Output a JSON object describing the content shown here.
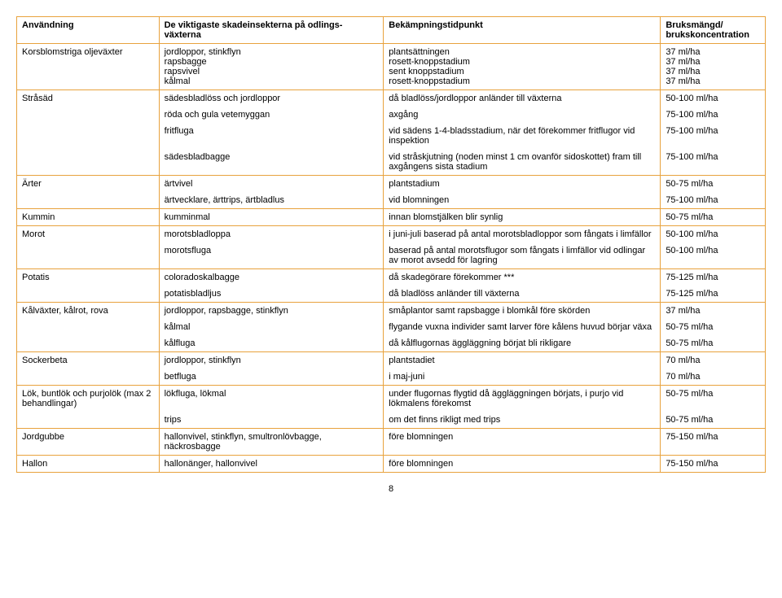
{
  "headers": {
    "c1": "Användning",
    "c2": "De viktigaste skadeinsekterna på odlings-växterna",
    "c3": "Bekämpningstidpunkt",
    "c4": "Bruksmängd/ brukskoncentration"
  },
  "rows": [
    {
      "c1": "Korsblomstriga oljeväxter",
      "c2": "jordloppor, stinkflyn\nrapsbagge\nrapsvivel\nkålmal",
      "c3": "plantsättningen\nrosett-knoppstadium\nsent knoppstadium\nrosett-knoppstadium",
      "c4": "37 ml/ha\n37 ml/ha\n37 ml/ha\n37 ml/ha",
      "cls": ""
    },
    {
      "c1": "Stråsäd",
      "c2": "sädesbladlöss och jordloppor",
      "c3": "då bladlöss/jordloppor anländer till växterna",
      "c4": "50-100 ml/ha",
      "cls": "no-bottom"
    },
    {
      "c1": "",
      "c2": "röda och gula vetemyggan",
      "c3": "axgång",
      "c4": "75-100 ml/ha",
      "cls": "no-top no-bottom"
    },
    {
      "c1": "",
      "c2": "fritfluga",
      "c3": "vid sädens 1-4-bladsstadium, när det förekommer fritflugor vid inspektion",
      "c4": "75-100 ml/ha",
      "cls": "no-top no-bottom"
    },
    {
      "c1": "",
      "c2": "sädesbladbagge",
      "c3": "vid stråskjutning (noden minst 1 cm ovanför sidoskottet) fram till axgångens sista stadium",
      "c4": "75-100 ml/ha",
      "cls": "no-top"
    },
    {
      "c1": "Ärter",
      "c2": "ärtvivel",
      "c3": "plantstadium",
      "c4": "50-75 ml/ha",
      "cls": "no-bottom"
    },
    {
      "c1": "",
      "c2": "ärtvecklare, ärttrips, ärtbladlus",
      "c3": "vid blomningen",
      "c4": "75-100 ml/ha",
      "cls": "no-top"
    },
    {
      "c1": "Kummin",
      "c2": "kumminmal",
      "c3": "innan blomstjälken blir synlig",
      "c4": "50-75 ml/ha",
      "cls": ""
    },
    {
      "c1": "Morot",
      "c2": "morotsbladloppa",
      "c3": "i juni-juli baserad på antal morotsbladloppor som fångats i limfällor",
      "c4": "50-100 ml/ha",
      "cls": "no-bottom"
    },
    {
      "c1": "",
      "c2": "morotsfluga",
      "c3": "baserad på antal morotsflugor som fångats i limfällor vid odlingar av morot avsedd för lagring",
      "c4": "50-100 ml/ha",
      "cls": "no-top"
    },
    {
      "c1": "Potatis",
      "c2": "coloradoskalbagge",
      "c3": "då skadegörare förekommer ***",
      "c4": "75-125 ml/ha",
      "cls": "no-bottom"
    },
    {
      "c1": "",
      "c2": "potatisbladljus",
      "c3": "då bladlöss anländer till växterna",
      "c4": "75-125 ml/ha",
      "cls": "no-top"
    },
    {
      "c1": "Kålväxter, kålrot, rova",
      "c2": "jordloppor, rapsbagge, stinkflyn",
      "c3": "småplantor samt rapsbagge i blomkål före skörden",
      "c4": "37 ml/ha",
      "cls": "no-bottom"
    },
    {
      "c1": "",
      "c2": "kålmal",
      "c3": "flygande vuxna individer samt larver före kålens huvud börjar växa",
      "c4": "50-75 ml/ha",
      "cls": "no-top no-bottom"
    },
    {
      "c1": "",
      "c2": "kålfluga",
      "c3": "då kålflugornas äggläggning börjat bli rikligare",
      "c4": "50-75 ml/ha",
      "cls": "no-top"
    },
    {
      "c1": "Sockerbeta",
      "c2": "jordloppor, stinkflyn",
      "c3": "plantstadiet",
      "c4": "70 ml/ha",
      "cls": "no-bottom"
    },
    {
      "c1": "",
      "c2": "betfluga",
      "c3": "i maj-juni",
      "c4": "70 ml/ha",
      "cls": "no-top"
    },
    {
      "c1": "Lök, buntlök och purjolök (max 2 behandlingar)",
      "c2": "lökfluga, lökmal",
      "c3": "under flugornas flygtid då äggläggningen börjats, i purjo vid lökmalens förekomst",
      "c4": "50-75 ml/ha",
      "cls": "no-bottom"
    },
    {
      "c1": "",
      "c2": "trips",
      "c3": "om det finns rikligt med trips",
      "c4": "50-75 ml/ha",
      "cls": "no-top"
    },
    {
      "c1": "Jordgubbe",
      "c2": "hallonvivel, stinkflyn, smultronlövbagge, näckrosbagge",
      "c3": "före blomningen",
      "c4": "75-150 ml/ha",
      "cls": ""
    },
    {
      "c1": "Hallon",
      "c2": "hallonänger, hallonvivel",
      "c3": "före blomningen",
      "c4": "75-150 ml/ha",
      "cls": ""
    }
  ],
  "pageNumber": "8"
}
